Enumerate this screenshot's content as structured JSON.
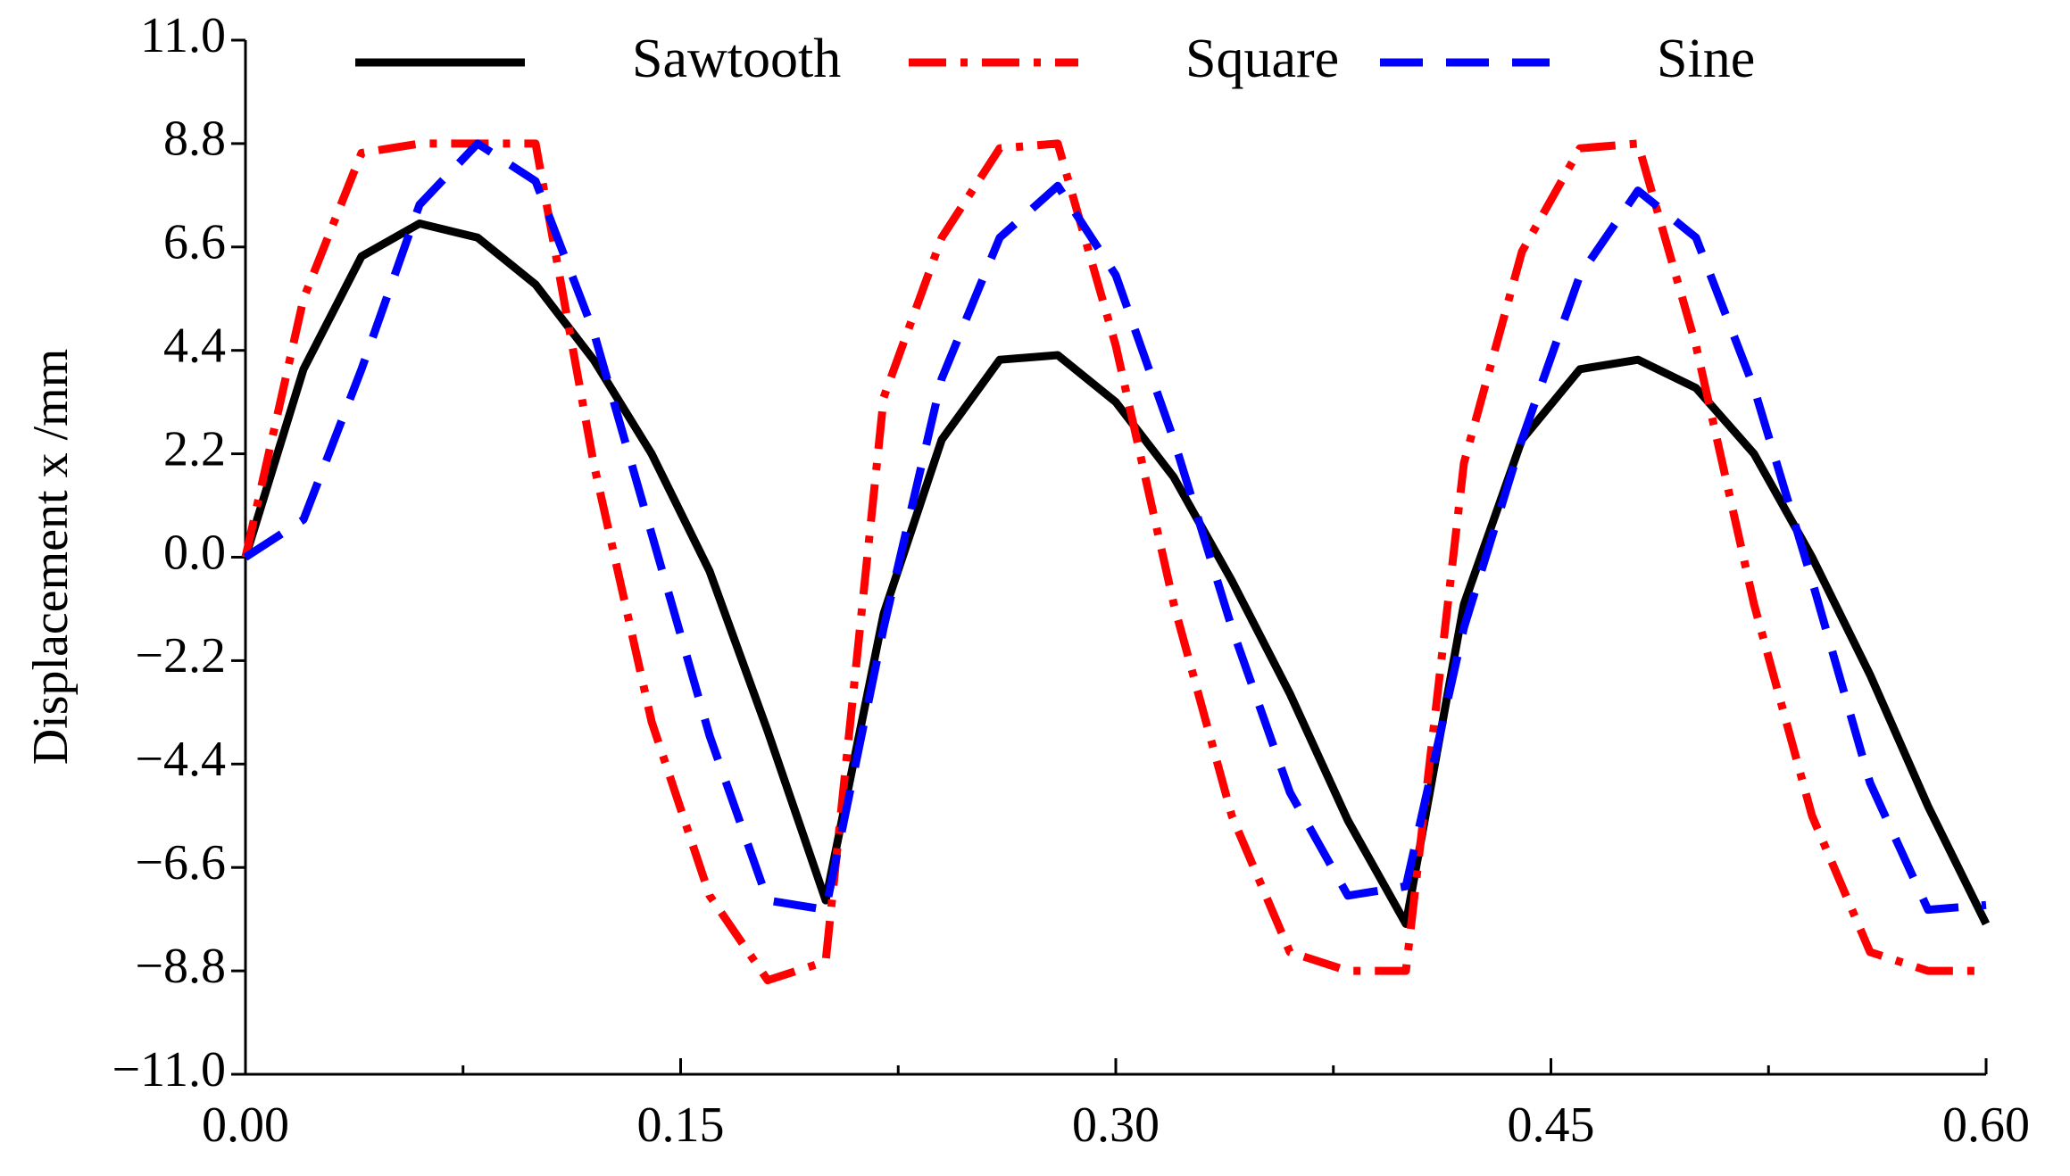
{
  "chart_data": {
    "type": "line",
    "y_label": "Displacement x /mm",
    "x": [
      0,
      0.02,
      0.04,
      0.06,
      0.08,
      0.1,
      0.12,
      0.14,
      0.16,
      0.18,
      0.2,
      0.22,
      0.24,
      0.26,
      0.28,
      0.3,
      0.32,
      0.34,
      0.36,
      0.38,
      0.4,
      0.42,
      0.44,
      0.46,
      0.48,
      0.5,
      0.52,
      0.54,
      0.56,
      0.58,
      0.6
    ],
    "series": [
      {
        "name": "Sawtooth",
        "color": "#000000",
        "values": [
          0,
          4.0,
          6.4,
          7.1,
          6.8,
          5.8,
          4.2,
          2.2,
          -0.3,
          -3.7,
          -7.3,
          -1.2,
          2.5,
          4.2,
          4.3,
          3.3,
          1.7,
          -0.5,
          -2.9,
          -5.6,
          -7.8,
          -1.0,
          2.5,
          4.0,
          4.2,
          3.6,
          2.2,
          0.0,
          -2.5,
          -5.3,
          -7.8
        ]
      },
      {
        "name": "Square",
        "color": "#ff0000",
        "values": [
          0,
          5.5,
          8.6,
          8.8,
          8.8,
          8.8,
          2.0,
          -3.5,
          -7.2,
          -9.0,
          -8.6,
          3.4,
          6.8,
          8.7,
          8.8,
          4.5,
          -1.0,
          -5.5,
          -8.4,
          -8.8,
          -8.8,
          2.0,
          6.5,
          8.7,
          8.8,
          4.5,
          -1.0,
          -5.5,
          -8.4,
          -8.8,
          -8.8
        ]
      },
      {
        "name": "Sine",
        "color": "#0000ff",
        "values": [
          0,
          0.8,
          4.0,
          7.5,
          8.8,
          8.0,
          4.8,
          0.5,
          -3.8,
          -7.3,
          -7.5,
          -1.5,
          3.8,
          6.8,
          7.9,
          6.0,
          2.5,
          -1.5,
          -5.0,
          -7.2,
          -7.0,
          -1.5,
          2.5,
          6.0,
          7.8,
          6.8,
          3.6,
          -0.5,
          -4.8,
          -7.5,
          -7.4
        ]
      }
    ],
    "xlim": [
      0,
      0.6
    ],
    "xticks": [
      {
        "value": 0,
        "label": "0.00"
      },
      {
        "value": 0.15,
        "label": "0.15"
      },
      {
        "value": 0.3,
        "label": "0.30"
      },
      {
        "value": 0.45,
        "label": "0.45"
      },
      {
        "value": 0.6,
        "label": "0.60"
      }
    ],
    "ylim": [
      -11,
      11
    ],
    "yticks": [
      {
        "value": -11,
        "label": "−11.0"
      },
      {
        "value": -8.8,
        "label": "−8.8"
      },
      {
        "value": -6.6,
        "label": "−6.6"
      },
      {
        "value": -4.4,
        "label": "−4.4"
      },
      {
        "value": -2.2,
        "label": "−2.2"
      },
      {
        "value": 0,
        "label": "0.0"
      },
      2.2,
      4.4,
      6.6,
      8.8,
      {
        "value": 11,
        "label": "11.0"
      }
    ],
    "grid": false,
    "legend": "top"
  }
}
